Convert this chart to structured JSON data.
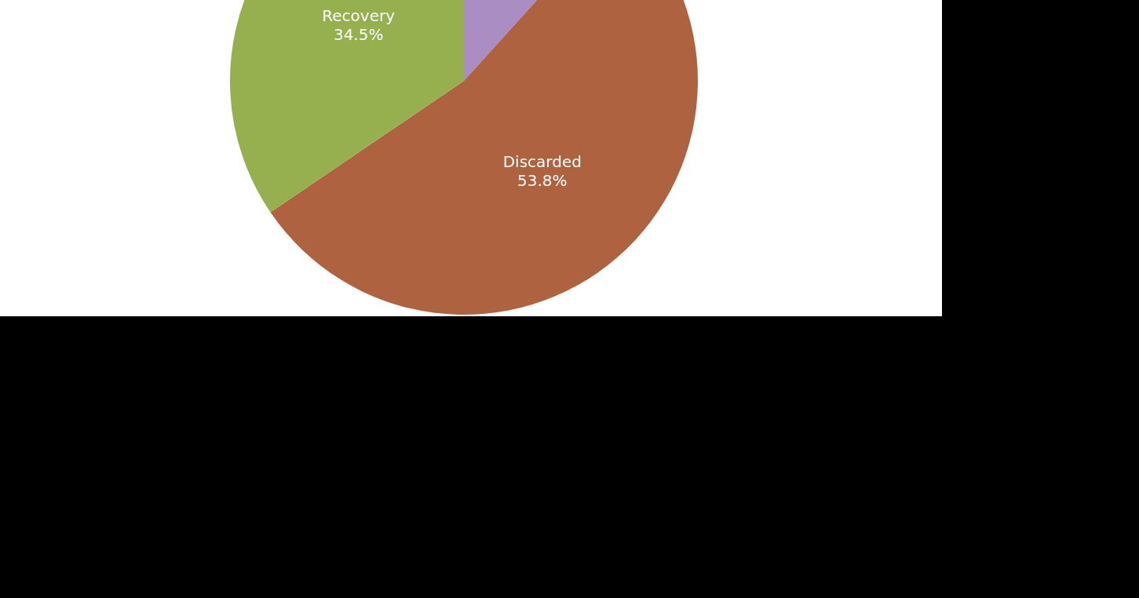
{
  "chart_data": {
    "type": "pie",
    "categories": [
      null,
      "Discarded",
      "Recovery"
    ],
    "values": [
      11.7,
      53.8,
      34.5
    ],
    "colors": [
      "#a98dc3",
      "#ae6240",
      "#96b050"
    ],
    "value_labels": [
      null,
      "53.8%",
      "34.5%"
    ],
    "legend": false
  }
}
